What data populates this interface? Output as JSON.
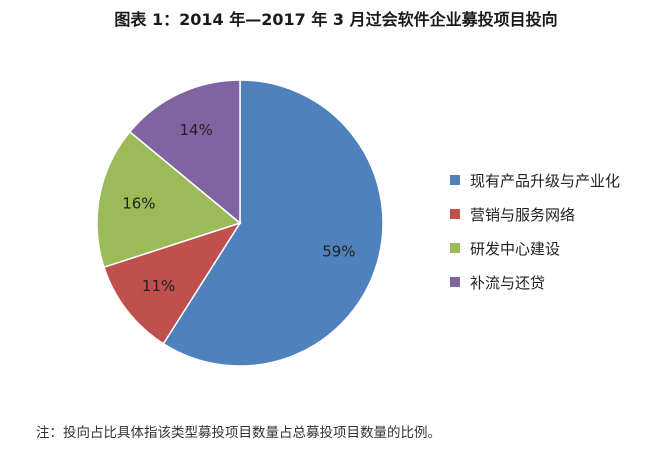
{
  "chart_data": {
    "type": "pie",
    "title": "图表 1：2014 年—2017 年 3 月过会软件企业募投项目投向",
    "categories": [
      "现有产品升级与产业化",
      "营销与服务网络",
      "研发中心建设",
      "补流与还贷"
    ],
    "values": [
      59,
      11,
      16,
      14
    ],
    "data_labels": [
      "59%",
      "11%",
      "16%",
      "14%"
    ],
    "colors": [
      "#4f81bd",
      "#c0504d",
      "#9bbb59",
      "#8064a2"
    ],
    "legend_position": "right"
  },
  "note": "注：投向占比具体指该类型募投项目数量占总募投项目数量的比例。"
}
